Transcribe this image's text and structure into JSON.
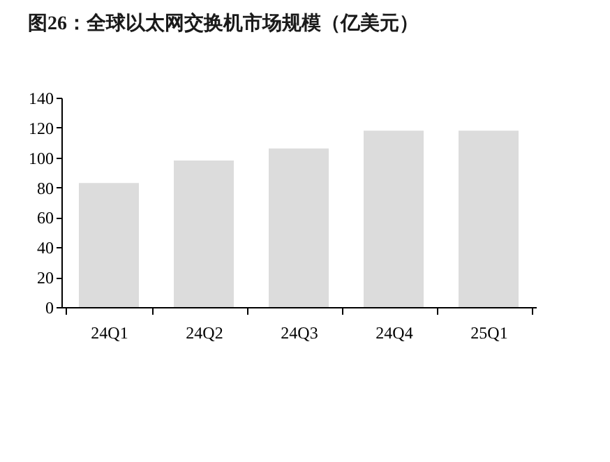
{
  "chart_data": {
    "type": "bar",
    "title": "图26：全球以太网交换机市场规模（亿美元）",
    "categories": [
      "24Q1",
      "24Q2",
      "24Q3",
      "24Q4",
      "25Q1"
    ],
    "values": [
      83,
      98,
      106,
      118,
      118
    ],
    "color": "#dcdcdc",
    "ylim": [
      0,
      140
    ],
    "yticks": [
      0,
      20,
      40,
      60,
      80,
      100,
      120,
      140
    ],
    "grid": false
  }
}
